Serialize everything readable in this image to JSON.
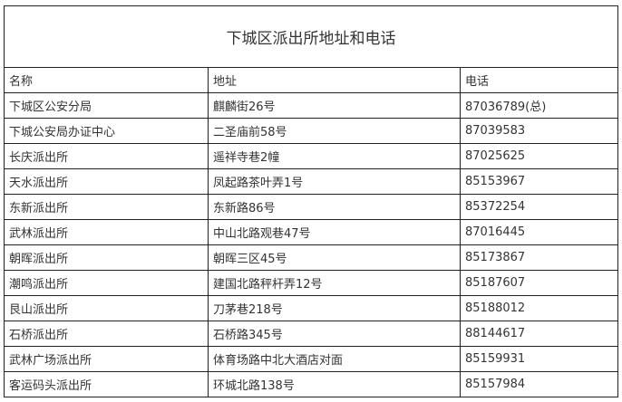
{
  "title": "下城区派出所地址和电话",
  "headers": [
    "名称",
    "地址",
    "电话"
  ],
  "rows": [
    [
      "下城区公安分局",
      "麒麟街26号",
      "87036789(总)"
    ],
    [
      "下城公安局办证中心",
      "二圣庙前58号",
      "87039583"
    ],
    [
      "长庆派出所",
      "遥祥寺巷2幢",
      "87025625"
    ],
    [
      "天水派出所",
      "凤起路茶叶弄1号",
      "85153967"
    ],
    [
      "东新派出所",
      "东新路86号",
      "85372254"
    ],
    [
      "武林派出所",
      "中山北路观巷47号",
      "87016445"
    ],
    [
      "朝晖派出所",
      "朝晖三区45号",
      "85173867"
    ],
    [
      "潮鸣派出所",
      "建国北路秤杆弄12号",
      "85187607"
    ],
    [
      "艮山派出所",
      "刀茅巷218号",
      "85188012"
    ],
    [
      "石桥派出所",
      "石桥路345号",
      "88144617"
    ],
    [
      "武林广场派出所",
      "体育场路中北大酒店对面",
      "85159931"
    ],
    [
      "客运码头派出所",
      "环城北路138号",
      "85157984"
    ]
  ]
}
